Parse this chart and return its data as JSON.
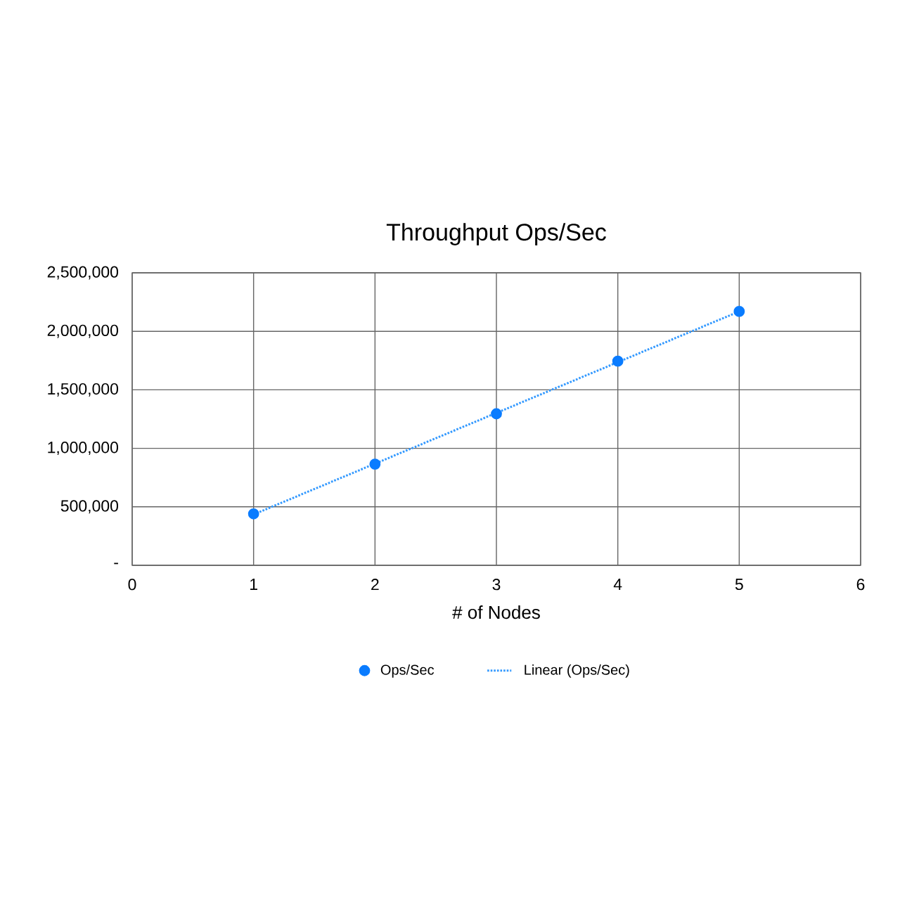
{
  "chart_data": {
    "type": "scatter",
    "title": "Throughput Ops/Sec",
    "xlabel": "# of Nodes",
    "xlim": [
      0,
      6
    ],
    "xticks": [
      0,
      1,
      2,
      3,
      4,
      5,
      6
    ],
    "ylim": [
      0,
      2500000
    ],
    "yticks": [
      {
        "value": 0,
        "label": "-"
      },
      {
        "value": 500000,
        "label": "500,000"
      },
      {
        "value": 1000000,
        "label": "1,000,000"
      },
      {
        "value": 1500000,
        "label": "1,500,000"
      },
      {
        "value": 2000000,
        "label": "2,000,000"
      },
      {
        "value": 2500000,
        "label": "2,500,000"
      }
    ],
    "grid": true,
    "legend": "bottom",
    "series": [
      {
        "name": "Ops/Sec",
        "marker": "circle",
        "color": "#0a7cff",
        "x": [
          1,
          2,
          3,
          4,
          5
        ],
        "values": [
          440000,
          865000,
          1295000,
          1745000,
          2170000
        ]
      },
      {
        "name": "Linear (Ops/Sec)",
        "type": "line",
        "marker": "none",
        "line_style": "dotted",
        "color": "#3399ff",
        "x": [
          1,
          5
        ],
        "values": [
          435000,
          2170000
        ]
      }
    ]
  }
}
